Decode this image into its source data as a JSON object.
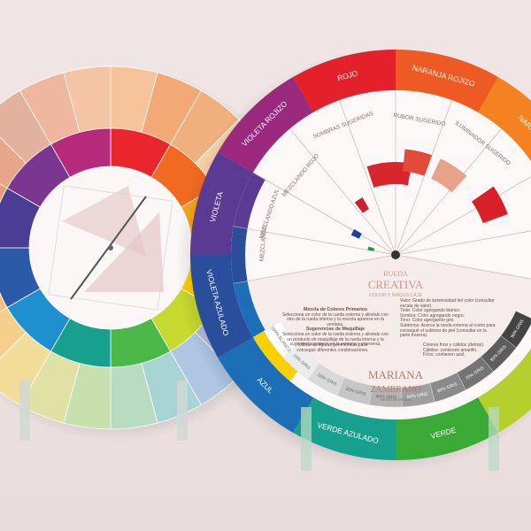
{
  "right_wheel": {
    "ring_labels": [
      "ROJO",
      "NARANJA ROJIZO",
      "NARA",
      "VERDE",
      "VERDE AZULADO",
      "AZUL",
      "VIOLETA AZULADO",
      "VIOLETA",
      "VIOLETA ROJIZO"
    ],
    "window_labels": [
      "SOMBRAS SUGERIDAS",
      "RUBOR SUGERIDO",
      "ILUMINADOR SUGERIDO",
      "MEZCLANDO ROJO",
      "MEZCLANDO AZUL",
      "MEZCLANDO"
    ],
    "title": "RUEDA",
    "title2": "CREATIVA",
    "subtitle": "COLOR Y MAQUILLAJE",
    "notes_left": [
      "Mezcla de Colores Primarios",
      "Selecciona un color de la rueda externa y alinéalo con otro de la rueda interna y la mezcla aparece en la ventana.",
      "Sugerencias de Maquillaje",
      "Selecciona un color de la rueda externa y alinéalo con un producto de maquillaje de la rueda interna y la sugerencia aparece en la ventana y viceversa.",
      "Utiliza las figuras geométricas para conseguir diferentes combinaciones."
    ],
    "notes_right": [
      "Valor: Grado de luminosidad del color (consultar escala de valor).",
      "Tinte: Color agregando blanco.",
      "Sombra: Color agregando negro.",
      "Tono: Color agregando gris.",
      "Subtonos: Acerca la rueda externa al rostro para conseguir el subtono de piel (consultar en la parte trasera).",
      "Colores fríos y cálidos (detrás). Cálidos: contienen amarillo. Fríos: contienen azul."
    ],
    "brand": "MARIANA",
    "brand2": "ZAMBRANO",
    "footer": "Hecho en México",
    "gray_scale": [
      "100% BLANCO",
      "10% GRIS",
      "20% GRIS",
      "30% GRIS",
      "40% GRIS",
      "50% GRIS",
      "60% GRIS",
      "70% GRIS",
      "80% GRIS",
      "90% GRIS"
    ]
  }
}
